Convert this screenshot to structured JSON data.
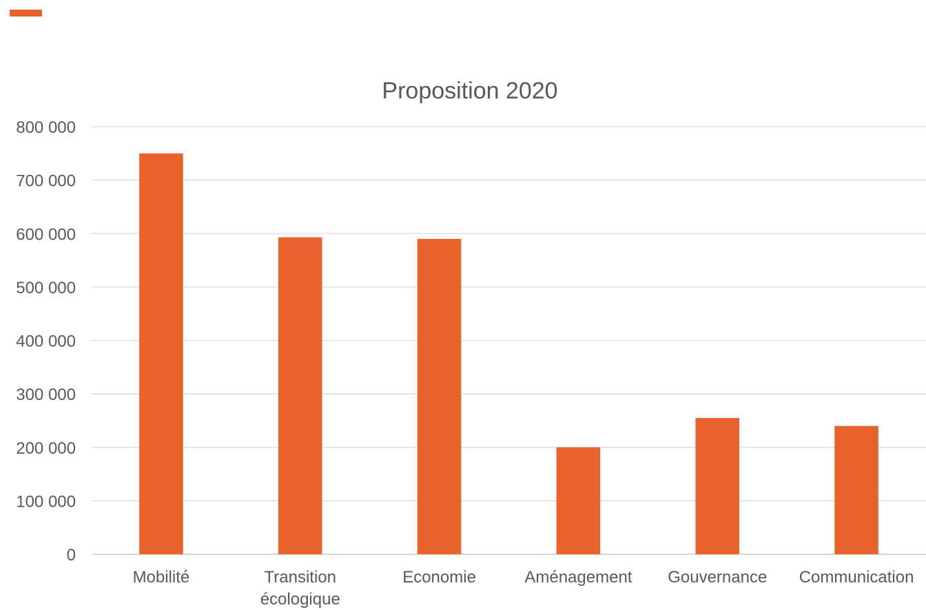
{
  "colors": {
    "accent": "#E8642C",
    "bar": "#E8642C",
    "grid": "#D9D9D9",
    "axis": "#BFBFBF",
    "text": "#595959"
  },
  "chart_data": {
    "type": "bar",
    "title": "Proposition 2020",
    "categories": [
      "Mobilité",
      "Transition écologique",
      "Economie",
      "Aménagement",
      "Gouvernance",
      "Communication"
    ],
    "category_lines": [
      [
        "Mobilité"
      ],
      [
        "Transition",
        "écologique"
      ],
      [
        "Economie"
      ],
      [
        "Aménagement"
      ],
      [
        "Gouvernance"
      ],
      [
        "Communication"
      ]
    ],
    "values": [
      750000,
      593000,
      590000,
      200000,
      255000,
      240000
    ],
    "ylim": [
      0,
      800000
    ],
    "yticks": [
      0,
      100000,
      200000,
      300000,
      400000,
      500000,
      600000,
      700000,
      800000
    ],
    "ytick_labels": [
      "0",
      "100 000",
      "200 000",
      "300 000",
      "400 000",
      "500 000",
      "600 000",
      "700 000",
      "800 000"
    ],
    "grid": true,
    "legend": "none"
  }
}
